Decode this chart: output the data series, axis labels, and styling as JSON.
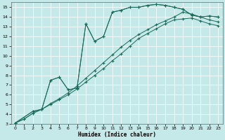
{
  "xlabel": "Humidex (Indice chaleur)",
  "xlim": [
    -0.5,
    23.5
  ],
  "ylim": [
    3,
    15.5
  ],
  "xticks": [
    0,
    1,
    2,
    3,
    4,
    5,
    6,
    7,
    8,
    9,
    10,
    11,
    12,
    13,
    14,
    15,
    16,
    17,
    18,
    19,
    20,
    21,
    22,
    23
  ],
  "yticks": [
    3,
    4,
    5,
    6,
    7,
    8,
    9,
    10,
    11,
    12,
    13,
    14,
    15
  ],
  "bg_color": "#c5e8e8",
  "grid_color": "#ffffff",
  "line_color": "#1a6b5a",
  "series": [
    {
      "x": [
        0,
        2,
        3,
        4,
        5,
        6,
        7,
        8,
        9,
        10,
        11,
        12,
        13,
        14,
        15,
        16,
        17,
        18,
        19,
        20,
        21,
        22,
        23
      ],
      "y": [
        3.1,
        4.3,
        4.5,
        7.5,
        7.8,
        6.5,
        6.7,
        13.3,
        11.5,
        12.0,
        14.5,
        14.7,
        15.0,
        15.0,
        15.2,
        15.3,
        15.2,
        15.0,
        14.8,
        14.2,
        14.0,
        14.1,
        14.0
      ]
    },
    {
      "x": [
        0,
        2,
        3,
        4,
        5,
        6,
        7,
        8,
        9,
        10,
        11,
        12,
        13,
        14,
        15,
        16,
        17,
        18,
        19,
        20,
        21,
        22,
        23
      ],
      "y": [
        3.1,
        4.3,
        4.5,
        7.5,
        7.8,
        6.5,
        6.7,
        13.3,
        11.5,
        12.0,
        14.5,
        14.7,
        15.0,
        15.0,
        15.2,
        15.3,
        15.2,
        15.0,
        14.8,
        14.2,
        14.0,
        14.1,
        14.0
      ]
    },
    {
      "x": [
        0,
        1,
        2,
        3,
        4,
        5,
        6,
        7,
        8,
        9,
        10,
        11,
        12,
        13,
        14,
        15,
        16,
        17,
        18,
        19,
        20,
        21,
        22,
        23
      ],
      "y": [
        3.1,
        3.5,
        4.1,
        4.5,
        5.1,
        5.6,
        6.2,
        6.9,
        7.7,
        8.5,
        9.3,
        10.1,
        10.9,
        11.6,
        12.2,
        12.7,
        13.2,
        13.6,
        14.0,
        14.5,
        14.3,
        14.0,
        13.7,
        13.5
      ]
    },
    {
      "x": [
        0,
        1,
        2,
        3,
        4,
        5,
        6,
        7,
        8,
        9,
        10,
        11,
        12,
        13,
        14,
        15,
        16,
        17,
        18,
        19,
        20,
        21,
        22,
        23
      ],
      "y": [
        3.1,
        3.5,
        4.1,
        4.5,
        5.0,
        5.5,
        6.0,
        6.6,
        7.3,
        8.0,
        8.7,
        9.5,
        10.2,
        11.0,
        11.8,
        12.3,
        12.8,
        13.3,
        13.7,
        13.8,
        13.9,
        13.6,
        13.3,
        13.1
      ]
    }
  ]
}
